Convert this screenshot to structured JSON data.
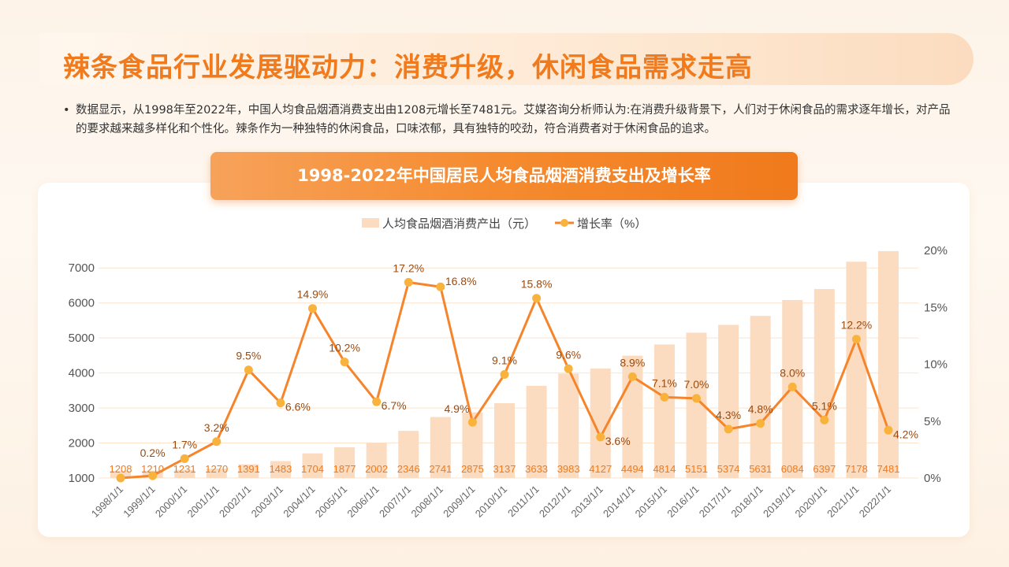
{
  "header": {
    "title": "辣条食品行业发展驱动力：消费升级，休闲食品需求走高",
    "bullet": "数据显示，从1998年至2022年，中国人均食品烟酒消费支出由1208元增长至7481元。艾媒咨询分析师认为:在消费升级背景下，人们对于休闲食品的需求逐年增长，对产品的要求越来越多样化和个性化。辣条作为一种独特的休闲食品，口味浓郁，具有独特的咬劲，符合消费者对于休闲食品的追求。"
  },
  "colors": {
    "bar": "#fcdcc0",
    "line": "#f5842a",
    "marker": "#f9b33c",
    "bar_label": "#f07a1c",
    "line_label": "#9a4a10",
    "title": "#f07a1c"
  },
  "chart_data": {
    "type": "bar+line",
    "title": "1998-2022年中国居民人均食品烟酒消费支出及增长率",
    "legend_position": "top-center",
    "categories": [
      "1998/1/1",
      "1999/1/1",
      "2000/1/1",
      "2001/1/1",
      "2002/1/1",
      "2003/1/1",
      "2004/1/1",
      "2005/1/1",
      "2006/1/1",
      "2007/1/1",
      "2008/1/1",
      "2009/1/1",
      "2010/1/1",
      "2011/1/1",
      "2012/1/1",
      "2013/1/1",
      "2014/1/1",
      "2015/1/1",
      "2016/1/1",
      "2017/1/1",
      "2018/1/1",
      "2019/1/1",
      "2020/1/1",
      "2021/1/1",
      "2022/1/1"
    ],
    "series": [
      {
        "name": "人均食品烟酒消费产出（元）",
        "type": "bar",
        "axis": "left",
        "values": [
          1208,
          1210,
          1231,
          1270,
          1391,
          1483,
          1704,
          1877,
          2002,
          2346,
          2741,
          2875,
          3137,
          3633,
          3983,
          4127,
          4494,
          4814,
          5151,
          5374,
          5631,
          6084,
          6397,
          7178,
          7481
        ]
      },
      {
        "name": "增长率（%）",
        "type": "line",
        "axis": "right",
        "values": [
          0,
          0.2,
          1.7,
          3.2,
          9.5,
          6.6,
          14.9,
          10.2,
          6.7,
          17.2,
          16.8,
          4.9,
          9.1,
          15.8,
          9.6,
          3.6,
          8.9,
          7.1,
          7.0,
          4.3,
          4.8,
          8.0,
          5.1,
          12.2,
          4.2
        ],
        "labels": [
          null,
          "0.2%",
          "1.7%",
          "3.2%",
          "9.5%",
          "6.6%",
          "14.9%",
          "10.2%",
          "6.7%",
          "17.2%",
          "16.8%",
          "4.9%",
          "9.1%",
          "15.8%",
          "9.6%",
          "3.6%",
          "8.9%",
          "7.1%",
          "7.0%",
          "4.3%",
          "4.8%",
          "8.0%",
          "5.1%",
          "12.2%",
          "4.2%"
        ]
      }
    ],
    "y_left": {
      "range": [
        1000,
        7500
      ],
      "ticks": [
        "1000",
        "2000",
        "3000",
        "4000",
        "5000",
        "6000",
        "7000"
      ],
      "tick_values": [
        1000,
        2000,
        3000,
        4000,
        5000,
        6000,
        7000
      ]
    },
    "y_right": {
      "range": [
        0,
        20
      ],
      "ticks": [
        "0%",
        "5%",
        "10%",
        "15%",
        "20%"
      ],
      "tick_values": [
        0,
        5,
        10,
        15,
        20
      ]
    },
    "grid": true
  }
}
